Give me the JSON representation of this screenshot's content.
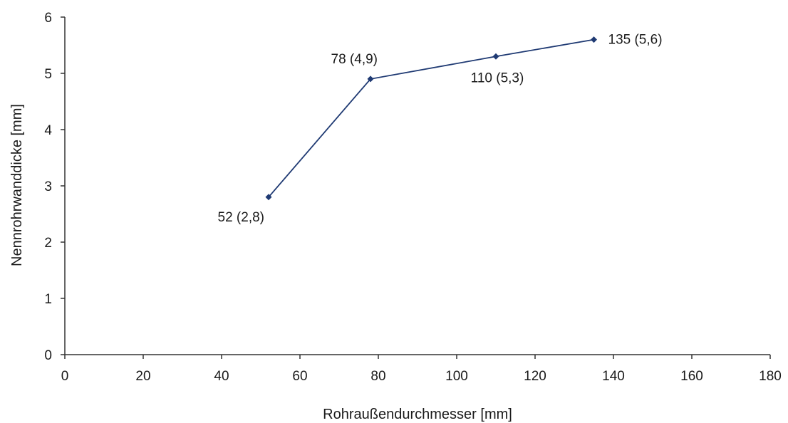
{
  "chart_data": {
    "type": "line",
    "title": "",
    "xlabel": "Rohraußendurchmesser [mm]",
    "ylabel": "Nennrohrwanddicke [mm]",
    "xlim": [
      0,
      180
    ],
    "ylim": [
      0,
      6
    ],
    "x_ticks": [
      0,
      20,
      40,
      60,
      80,
      100,
      120,
      140,
      160,
      180
    ],
    "y_ticks": [
      0,
      1,
      2,
      3,
      4,
      5,
      6
    ],
    "grid": false,
    "legend": "none",
    "series": [
      {
        "color": "#1f3a73",
        "points": [
          {
            "x": 52,
            "y": 2.8,
            "label": "52 (2,8)",
            "label_pos": "below-left"
          },
          {
            "x": 78,
            "y": 4.9,
            "label": "78 (4,9)",
            "label_pos": "above-left"
          },
          {
            "x": 110,
            "y": 5.3,
            "label": "110 (5,3)",
            "label_pos": "below"
          },
          {
            "x": 135,
            "y": 5.6,
            "label": "135 (5,6)",
            "label_pos": "right"
          }
        ]
      }
    ]
  }
}
